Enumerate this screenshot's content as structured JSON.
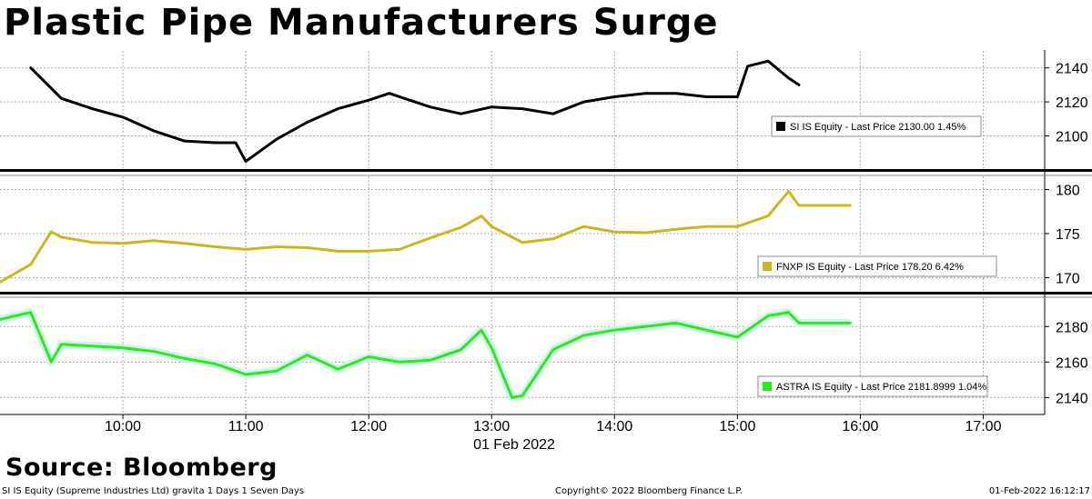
{
  "title": "Plastic Pipe Manufacturers Surge",
  "source": "Source: Bloomberg",
  "footer": {
    "left": "SI IS Equity (Supreme Industries Ltd) gravita 1 Days 1 Seven Days",
    "center": "Copyright© 2022 Bloomberg Finance L.P.",
    "right": "01-Feb-2022 16:12:17"
  },
  "colors": {
    "si": "#000000",
    "fnxp": "#c9b81d",
    "astra": "#2ee81a",
    "astra_glow": "#d2f5f0",
    "grid": "#aaaaaa"
  },
  "chart_data": [
    {
      "type": "line",
      "series": [
        {
          "name": "SI IS Equity",
          "color": "#000000",
          "x": [
            "09:15",
            "09:30",
            "09:45",
            "10:00",
            "10:15",
            "10:30",
            "10:45",
            "10:55",
            "11:00",
            "11:15",
            "11:30",
            "11:45",
            "12:00",
            "12:10",
            "12:30",
            "12:45",
            "13:00",
            "13:15",
            "13:30",
            "13:45",
            "14:00",
            "14:15",
            "14:30",
            "14:45",
            "15:00",
            "15:05",
            "15:15",
            "15:25",
            "15:30"
          ],
          "y": [
            2140,
            2122,
            2116,
            2111,
            2103,
            2097,
            2096,
            2096,
            2085,
            2098,
            2108,
            2116,
            2121,
            2125,
            2117,
            2113,
            2117,
            2116,
            2113,
            2120,
            2123,
            2125,
            2125,
            2123,
            2123,
            2141,
            2144,
            2134,
            2130
          ]
        }
      ],
      "legend": "SI IS Equity - Last Price 2130.00 1.45%",
      "yticks": [
        2100,
        2120,
        2140
      ],
      "ylim": [
        2081,
        2150
      ],
      "grid": true
    },
    {
      "type": "line",
      "series": [
        {
          "name": "FNXP IS Equity",
          "color": "#c9b81d",
          "x": [
            "09:00",
            "09:15",
            "09:25",
            "09:30",
            "09:45",
            "10:00",
            "10:15",
            "10:30",
            "10:45",
            "11:00",
            "11:15",
            "11:30",
            "11:45",
            "12:00",
            "12:15",
            "12:30",
            "12:45",
            "12:55",
            "13:00",
            "13:15",
            "13:30",
            "13:45",
            "14:00",
            "14:15",
            "14:30",
            "14:45",
            "15:00",
            "15:15",
            "15:25",
            "15:30",
            "15:45",
            "15:55"
          ],
          "y": [
            169.5,
            171.5,
            175.2,
            174.6,
            174.0,
            173.9,
            174.2,
            173.9,
            173.5,
            173.2,
            173.5,
            173.4,
            173.0,
            173.0,
            173.2,
            174.5,
            175.7,
            177.0,
            175.8,
            174.0,
            174.4,
            175.8,
            175.2,
            175.1,
            175.5,
            175.8,
            175.8,
            177.0,
            179.8,
            178.2,
            178.2,
            178.2
          ]
        }
      ],
      "legend": "FNXP IS Equity - Last Price 178.20 6.42%",
      "yticks": [
        170,
        175,
        180
      ],
      "ylim": [
        168.5,
        181.5
      ],
      "grid": true
    },
    {
      "type": "line",
      "series": [
        {
          "name": "ASTRA IS Equity",
          "color": "#2ee81a",
          "x": [
            "09:00",
            "09:15",
            "09:25",
            "09:30",
            "09:45",
            "10:00",
            "10:15",
            "10:30",
            "10:45",
            "11:00",
            "11:15",
            "11:30",
            "11:45",
            "12:00",
            "12:15",
            "12:30",
            "12:45",
            "12:55",
            "13:00",
            "13:10",
            "13:15",
            "13:30",
            "13:45",
            "14:00",
            "14:15",
            "14:30",
            "14:45",
            "15:00",
            "15:15",
            "15:25",
            "15:30",
            "15:45",
            "15:55"
          ],
          "y": [
            2184,
            2188,
            2160,
            2170,
            2169,
            2168,
            2166,
            2162,
            2159,
            2153,
            2155,
            2164,
            2156,
            2163,
            2160,
            2161,
            2167,
            2178,
            2168,
            2140,
            2141,
            2167,
            2175,
            2178,
            2180,
            2182,
            2178,
            2174,
            2186,
            2188,
            2182,
            2182,
            2182
          ]
        }
      ],
      "legend": "ASTRA IS Equity - Last Price 2181.8999 1.04%",
      "yticks": [
        2140,
        2160,
        2180
      ],
      "ylim": [
        2131,
        2196
      ],
      "grid": true
    }
  ],
  "xaxis": {
    "ticks": [
      "10:00",
      "11:00",
      "12:00",
      "13:00",
      "14:00",
      "15:00",
      "16:00",
      "17:00"
    ],
    "date_label": "01 Feb 2022",
    "range": [
      "09:00",
      "17:30"
    ]
  }
}
